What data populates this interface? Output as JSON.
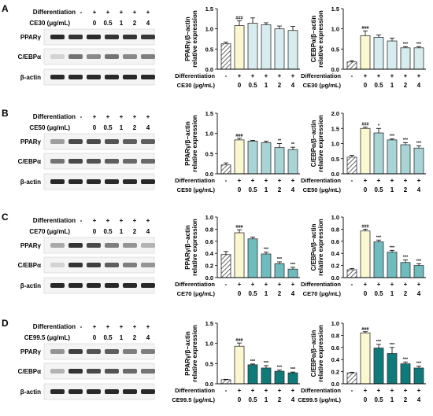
{
  "palette": {
    "control_hatch": "#555555",
    "bar_border": "#333333",
    "band": "#1e1e1e"
  },
  "common": {
    "differentiation_label": "Differentiation",
    "diff_signs": [
      "-",
      "+",
      "+",
      "+",
      "+",
      "+"
    ],
    "dose_labels": [
      "",
      "0",
      "0.5",
      "1",
      "2",
      "4"
    ],
    "sig_vs_control": "###"
  },
  "panels": [
    {
      "letter": "A",
      "dose_label": "CE30 (μg/mL)",
      "bar_color": "#d7ecee",
      "first_treated_color": "#fbf8d0",
      "blot_labels": [
        "PPARγ",
        "C/EBPα",
        "β-actin"
      ],
      "blots": {
        "PPARγ": [
          0.95,
          0.9,
          0.95,
          0.9,
          0.9,
          0.88
        ],
        "C/EBPα": [
          0.15,
          0.6,
          0.5,
          0.6,
          0.5,
          0.55
        ],
        "β-actin": [
          0.95,
          0.95,
          0.95,
          0.95,
          0.95,
          0.95
        ]
      },
      "charts": [
        {
          "type": "bar",
          "ylabel": [
            "PPARγ/β−actin",
            "relative expression"
          ],
          "ylim": [
            0,
            1.5
          ],
          "yticks": [
            "0.0",
            "0.5",
            "1.0",
            "1.5"
          ],
          "values": [
            0.63,
            1.08,
            1.14,
            1.1,
            1.0,
            0.96
          ],
          "errors": [
            0.04,
            0.12,
            0.13,
            0.05,
            0.07,
            0.1
          ],
          "significance": [
            "",
            "###",
            "",
            "",
            "",
            ""
          ]
        },
        {
          "type": "bar",
          "ylabel": [
            "C/EBPα/β−actin",
            "relative expression"
          ],
          "ylim": [
            0,
            1.5
          ],
          "yticks": [
            "0.0",
            "0.5",
            "1.0",
            "1.5"
          ],
          "values": [
            0.18,
            0.83,
            0.79,
            0.7,
            0.53,
            0.53
          ],
          "errors": [
            0.03,
            0.12,
            0.06,
            0.07,
            0.03,
            0.03
          ],
          "significance": [
            "",
            "###",
            "",
            "",
            "***",
            "***"
          ]
        }
      ]
    },
    {
      "letter": "B",
      "dose_label": "CE50 (μg/mL)",
      "bar_color": "#a8d4d6",
      "first_treated_color": "#fbf8d0",
      "blot_labels": [
        "PPARγ",
        "C/EBPα",
        "β-actin"
      ],
      "blots": {
        "PPARγ": [
          0.4,
          0.8,
          0.8,
          0.75,
          0.7,
          0.7
        ],
        "C/EBPα": [
          0.6,
          0.8,
          0.75,
          0.7,
          0.65,
          0.65
        ],
        "β-actin": [
          0.95,
          0.95,
          0.95,
          0.95,
          0.95,
          0.95
        ]
      },
      "charts": [
        {
          "type": "bar",
          "ylabel": [
            "PPARγ/β−actin",
            "relative expression"
          ],
          "ylim": [
            0,
            1.5
          ],
          "yticks": [
            "0.0",
            "0.5",
            "1.0",
            "1.5"
          ],
          "values": [
            0.22,
            0.84,
            0.81,
            0.77,
            0.65,
            0.6
          ],
          "errors": [
            0.05,
            0.04,
            0.02,
            0.04,
            0.1,
            0.06
          ],
          "significance": [
            "",
            "###",
            "",
            "",
            "**",
            "**"
          ]
        },
        {
          "type": "bar",
          "ylabel": [
            "C/EBPα/β−actin",
            "relative expression"
          ],
          "ylim": [
            0,
            2.0
          ],
          "yticks": [
            "0.0",
            "0.5",
            "1.0",
            "1.5",
            "2.0"
          ],
          "values": [
            0.55,
            1.5,
            1.35,
            1.12,
            0.96,
            0.85
          ],
          "errors": [
            0.06,
            0.04,
            0.15,
            0.03,
            0.07,
            0.07
          ],
          "significance": [
            "",
            "###",
            "*",
            "***",
            "***",
            "***"
          ]
        }
      ]
    },
    {
      "letter": "C",
      "dose_label": "CE70 (μg/mL)",
      "bar_color": "#6fbcbf",
      "first_treated_color": "#fbf8d0",
      "blot_labels": [
        "PPARγ",
        "C/EBPα",
        "β-actin"
      ],
      "blots": {
        "PPARγ": [
          0.35,
          0.9,
          0.8,
          0.55,
          0.45,
          0.3
        ],
        "C/EBPα": [
          0.15,
          0.9,
          0.85,
          0.7,
          0.55,
          0.45
        ],
        "β-actin": [
          0.95,
          0.95,
          0.95,
          0.95,
          0.95,
          0.95
        ]
      },
      "charts": [
        {
          "type": "bar",
          "ylabel": [
            "PPARγ/β−actin",
            "relative expression"
          ],
          "ylim": [
            0,
            1.0
          ],
          "yticks": [
            "0.0",
            "0.2",
            "0.4",
            "0.6",
            "0.8",
            "1.0"
          ],
          "values": [
            0.38,
            0.74,
            0.64,
            0.39,
            0.23,
            0.14
          ],
          "errors": [
            0.05,
            0.05,
            0.03,
            0.03,
            0.03,
            0.03
          ],
          "significance": [
            "",
            "###",
            "",
            "***",
            "***",
            "***"
          ]
        },
        {
          "type": "bar",
          "ylabel": [
            "C/EBPα/β−actin",
            "relative expression"
          ],
          "ylim": [
            0,
            1.0
          ],
          "yticks": [
            "0.0",
            "0.2",
            "0.4",
            "0.6",
            "0.8",
            "1.0"
          ],
          "values": [
            0.13,
            0.77,
            0.59,
            0.42,
            0.25,
            0.2
          ],
          "errors": [
            0.02,
            0.03,
            0.03,
            0.03,
            0.04,
            0.03
          ],
          "significance": [
            "",
            "###",
            "***",
            "***",
            "***",
            "***"
          ]
        }
      ]
    },
    {
      "letter": "D",
      "dose_label": "CE99.5 (μg/mL)",
      "bar_color": "#0f7a7a",
      "first_treated_color": "#fbf8d0",
      "blot_labels": [
        "PPARγ",
        "C/EBPα",
        "β-actin"
      ],
      "blots": {
        "PPARγ": [
          0.45,
          0.85,
          0.75,
          0.7,
          0.55,
          0.55
        ],
        "C/EBPα": [
          0.3,
          0.9,
          0.8,
          0.75,
          0.65,
          0.6
        ],
        "β-actin": [
          0.95,
          0.95,
          0.95,
          0.95,
          0.95,
          0.95
        ]
      },
      "charts": [
        {
          "type": "bar",
          "ylabel": [
            "PPARγ/β−actin",
            "relative expression"
          ],
          "ylim": [
            0,
            1.5
          ],
          "yticks": [
            "0.0",
            "0.5",
            "1.0",
            "1.5"
          ],
          "values": [
            0.1,
            0.93,
            0.47,
            0.39,
            0.31,
            0.27
          ],
          "errors": [
            0.01,
            0.08,
            0.02,
            0.06,
            0.03,
            0.02
          ],
          "significance": [
            "",
            "###",
            "***",
            "***",
            "***",
            "***"
          ]
        },
        {
          "type": "bar",
          "ylabel": [
            "C/EBPα/β−actin",
            "relative expression"
          ],
          "ylim": [
            0,
            1.0
          ],
          "yticks": [
            "0.0",
            "0.2",
            "0.4",
            "0.6",
            "0.8",
            "1.0"
          ],
          "values": [
            0.18,
            0.84,
            0.59,
            0.5,
            0.33,
            0.26
          ],
          "errors": [
            0.01,
            0.02,
            0.06,
            0.1,
            0.03,
            0.03
          ],
          "significance": [
            "",
            "###",
            "***",
            "***",
            "***",
            "***"
          ]
        }
      ]
    }
  ]
}
